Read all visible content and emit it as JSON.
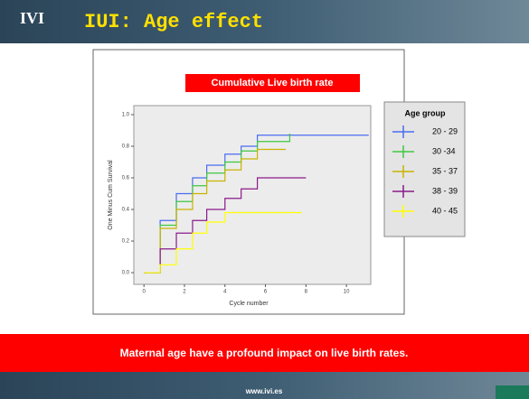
{
  "header": {
    "logo": "IVI",
    "title": "IUI: Age effect"
  },
  "chart_data": {
    "type": "step",
    "title": "Cumulative Live birth rate",
    "xlabel": "Cycle number",
    "ylabel": "One Minus Cum Survival",
    "legend_title": "Age group",
    "legend": "right",
    "xlim": [
      -0.5,
      11.2
    ],
    "ylim": [
      -0.074,
      1.057
    ],
    "xticks": [
      0,
      2,
      4,
      6,
      8,
      10
    ],
    "yticks": [
      {
        "value": 0,
        "label": "0.0"
      },
      {
        "value": 0.2,
        "label": "0.2"
      },
      {
        "value": 0.4,
        "label": "0.4"
      },
      {
        "value": 0.6,
        "label": "0.6"
      },
      {
        "value": 0.8,
        "label": "0.8"
      },
      {
        "value": 1,
        "label": "1.0"
      }
    ],
    "series": [
      {
        "name": "20 - 29",
        "color": "#4a6cf0",
        "x": [
          0,
          0.8,
          1.6,
          2.4,
          3.1,
          4.0,
          4.8,
          5.6,
          11.1
        ],
        "values": [
          0,
          0.33,
          0.5,
          0.6,
          0.68,
          0.75,
          0.8,
          0.87,
          0.87
        ]
      },
      {
        "name": "30 -34",
        "color": "#3ec83e",
        "x": [
          0,
          0.8,
          1.6,
          2.4,
          3.1,
          4.0,
          4.8,
          5.6,
          7.2
        ],
        "values": [
          0,
          0.3,
          0.45,
          0.55,
          0.63,
          0.7,
          0.77,
          0.83,
          0.88
        ]
      },
      {
        "name": "35 - 37",
        "color": "#c8b400",
        "x": [
          0,
          0.8,
          1.6,
          2.4,
          3.1,
          4.0,
          4.8,
          5.6,
          7.0
        ],
        "values": [
          0,
          0.28,
          0.4,
          0.5,
          0.58,
          0.65,
          0.72,
          0.78,
          0.78
        ]
      },
      {
        "name": "38 - 39",
        "color": "#8a1a8a",
        "x": [
          0,
          0.8,
          1.6,
          2.4,
          3.1,
          4.0,
          4.8,
          5.6,
          8.0
        ],
        "values": [
          0,
          0.15,
          0.25,
          0.33,
          0.4,
          0.47,
          0.53,
          0.6,
          0.6
        ]
      },
      {
        "name": "40 - 45",
        "color": "#ffff00",
        "x": [
          0,
          0.8,
          1.6,
          2.4,
          3.1,
          4.0,
          7.8
        ],
        "values": [
          0,
          0.05,
          0.15,
          0.25,
          0.32,
          0.38,
          0.38
        ]
      }
    ]
  },
  "banner": "Maternal age have a profound impact on live birth rates.",
  "footer": "www.ivi.es"
}
